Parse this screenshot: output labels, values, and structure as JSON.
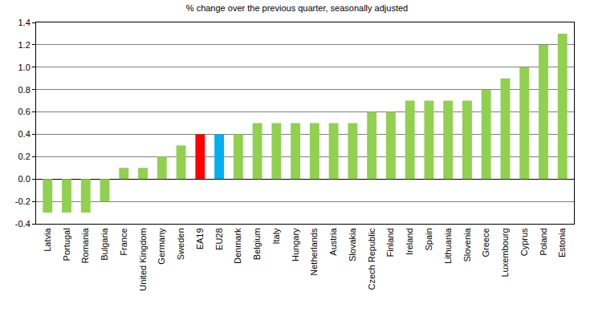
{
  "chart_data": {
    "type": "bar",
    "title": "% change over the previous quarter, seasonally adjusted",
    "categories": [
      "Latvia",
      "Portugal",
      "Romania",
      "Bulgaria",
      "France",
      "United Kingdom",
      "Germany",
      "Sweden",
      "EA19",
      "EU28",
      "Denmark",
      "Belgium",
      "Italy",
      "Hungary",
      "Netherlands",
      "Austria",
      "Slovakia",
      "Czech Republic",
      "Finland",
      "Ireland",
      "Spain",
      "Lithuania",
      "Slovenia",
      "Greece",
      "Luxembourg",
      "Cyprus",
      "Poland",
      "Estonia"
    ],
    "values": [
      -0.3,
      -0.3,
      -0.3,
      -0.2,
      0.1,
      0.1,
      0.2,
      0.3,
      0.4,
      0.4,
      0.4,
      0.5,
      0.5,
      0.5,
      0.5,
      0.5,
      0.5,
      0.6,
      0.6,
      0.7,
      0.7,
      0.7,
      0.7,
      0.8,
      0.9,
      1.0,
      1.2,
      1.3
    ],
    "colors": [
      "#92d050",
      "#92d050",
      "#92d050",
      "#92d050",
      "#92d050",
      "#92d050",
      "#92d050",
      "#92d050",
      "#ff0000",
      "#00b0f0",
      "#92d050",
      "#92d050",
      "#92d050",
      "#92d050",
      "#92d050",
      "#92d050",
      "#92d050",
      "#92d050",
      "#92d050",
      "#92d050",
      "#92d050",
      "#92d050",
      "#92d050",
      "#92d050",
      "#92d050",
      "#92d050",
      "#92d050",
      "#92d050"
    ],
    "ylim": [
      -0.4,
      1.4
    ],
    "yticks": [
      -0.4,
      -0.2,
      {
        "value": 0,
        "label": "0.0"
      },
      0.2,
      0.4,
      0.6,
      0.8,
      {
        "value": 1,
        "label": "1.0"
      },
      1.2,
      1.4
    ],
    "grid": true
  }
}
